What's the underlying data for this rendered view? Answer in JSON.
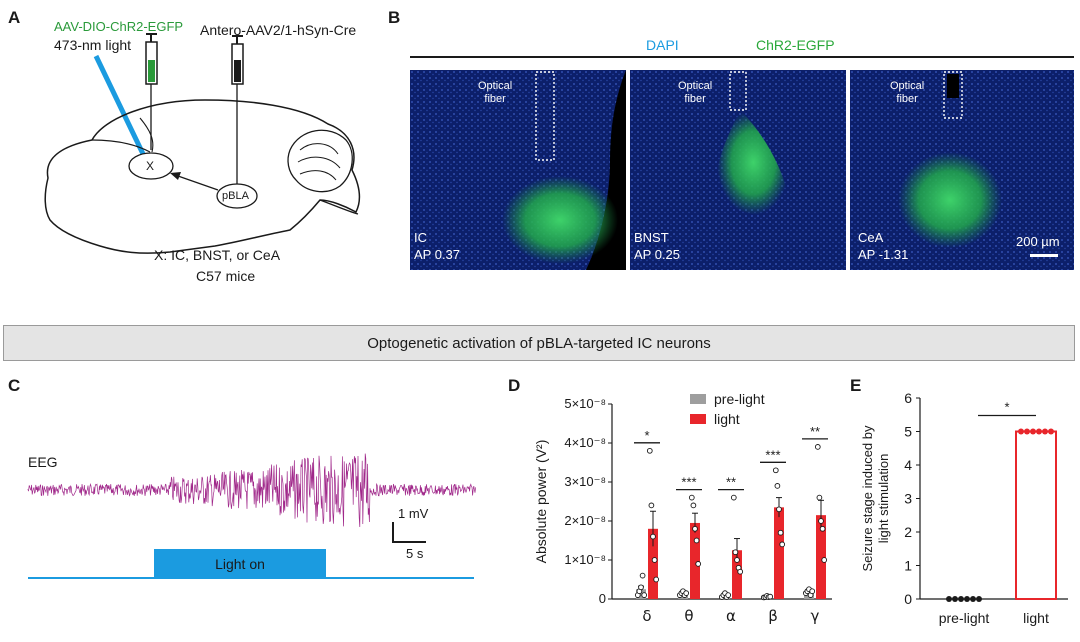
{
  "panel_a": {
    "letter": "A",
    "virus_label": "AAV-DIO-ChR2-EGFP",
    "light_label": "473-nm light",
    "antero_label": "Antero-AAV2/1-hSyn-Cre",
    "x_node": "X",
    "pbla_node": "pBLA",
    "caption": "X: IC, BNST, or CeA",
    "mice": "C57 mice",
    "colors": {
      "virus": "#2a9a3a",
      "fiber": "#1b9be0"
    }
  },
  "panel_b": {
    "letter": "B",
    "dapi": "DAPI",
    "chr2": "ChR2-EGFP",
    "scalebar": "200 µm",
    "images": [
      {
        "region": "IC",
        "ap": "AP 0.37",
        "fiber": "Optical\nfiber"
      },
      {
        "region": "BNST",
        "ap": "AP 0.25",
        "fiber": "Optical\nfiber"
      },
      {
        "region": "CeA",
        "ap": "AP -1.31",
        "fiber": "Optical\nfiber"
      }
    ],
    "colors": {
      "dapi": "#1b9be0",
      "chr2": "#2aa83a"
    }
  },
  "banner": {
    "text": "Optogenetic activation of pBLA-targeted IC neurons"
  },
  "panel_c": {
    "letter": "C",
    "eeg_label": "EEG",
    "light_on": "Light on",
    "scale_mv": "1 mV",
    "scale_s": "5 s",
    "colors": {
      "eeg": "#a0288a",
      "light": "#1b9be0"
    }
  },
  "panel_d": {
    "letter": "D",
    "chart_data": {
      "type": "bar",
      "ylabel": "Absolute power (V²)",
      "ylim": [
        0,
        5e-08
      ],
      "ytick_labels": [
        "0",
        "1×10⁻⁸",
        "2×10⁻⁸",
        "3×10⁻⁸",
        "4×10⁻⁸",
        "5×10⁻⁸"
      ],
      "ytick_values": [
        0,
        1e-08,
        2e-08,
        3e-08,
        4e-08,
        5e-08
      ],
      "categories": [
        "δ",
        "θ",
        "α",
        "β",
        "γ"
      ],
      "significance": [
        "*",
        "***",
        "**",
        "***",
        "**"
      ],
      "legend_position": "top-right",
      "series": [
        {
          "name": "pre-light",
          "color": "#9e9e9e",
          "values": [
            2.5e-09,
            1.5e-09,
            1e-09,
            6e-10,
            1.8e-09
          ],
          "errors": [
            8e-10,
            4e-10,
            4e-10,
            2e-10,
            4e-10
          ],
          "points": [
            [
              1e-09,
              2e-09,
              3e-09,
              6e-09,
              1e-09
            ],
            [
              1e-09,
              1.5e-09,
              2e-09,
              1e-09,
              1.5e-09
            ],
            [
              5e-10,
              1e-09,
              1.5e-09,
              5e-10,
              1e-09
            ],
            [
              4e-10,
              5e-10,
              8e-10,
              5e-10,
              6e-10
            ],
            [
              1.5e-09,
              2e-09,
              2.5e-09,
              1e-09,
              2e-09
            ]
          ]
        },
        {
          "name": "light",
          "color": "#e8262b",
          "values": [
            1.8e-08,
            1.95e-08,
            1.25e-08,
            2.35e-08,
            2.15e-08
          ],
          "errors": [
            4.5e-09,
            2.5e-09,
            3e-09,
            2.5e-09,
            3.8e-09
          ],
          "points": [
            [
              3.8e-08,
              2.4e-08,
              1.6e-08,
              1e-08,
              5e-09
            ],
            [
              2.6e-08,
              2.4e-08,
              1.8e-08,
              1.5e-08,
              9e-09
            ],
            [
              2.6e-08,
              1.2e-08,
              1e-08,
              8e-09,
              7e-09
            ],
            [
              3.3e-08,
              2.9e-08,
              2.3e-08,
              1.7e-08,
              1.4e-08
            ],
            [
              3.9e-08,
              2.6e-08,
              2e-08,
              1.8e-08,
              1e-08
            ]
          ]
        }
      ]
    }
  },
  "panel_e": {
    "letter": "E",
    "chart_data": {
      "type": "bar",
      "ylabel": "Seizure stage induced by light stimulation",
      "ylim": [
        0,
        6
      ],
      "yticks": [
        0,
        1,
        2,
        3,
        4,
        5,
        6
      ],
      "categories": [
        "pre-light",
        "light"
      ],
      "values": [
        0,
        5
      ],
      "points": [
        [
          0,
          0,
          0,
          0,
          0,
          0
        ],
        [
          5,
          5,
          5,
          5,
          5,
          5
        ]
      ],
      "significance": "*",
      "colors": [
        "#1a1a1a",
        "#e8262b"
      ]
    }
  }
}
